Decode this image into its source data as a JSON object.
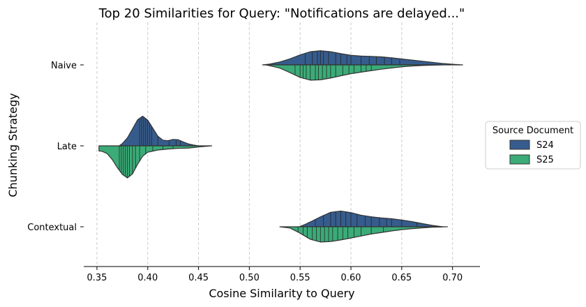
{
  "chart_data": {
    "type": "violin",
    "title": "Top 20 Similarities for Query: \"Notifications are delayed...\"",
    "xlabel": "Cosine Similarity to Query",
    "ylabel": "Chunking Strategy",
    "xlim": [
      0.337,
      0.727
    ],
    "xticks": [
      0.35,
      0.4,
      0.45,
      0.5,
      0.55,
      0.6,
      0.65,
      0.7
    ],
    "xtick_labels": [
      "0.35",
      "0.40",
      "0.45",
      "0.50",
      "0.55",
      "0.60",
      "0.65",
      "0.70"
    ],
    "categories": [
      "Naive",
      "Late",
      "Contextual"
    ],
    "grid": "x dashed",
    "split": true,
    "legend": {
      "title": "Source Document",
      "placement": "center-right",
      "entries": [
        "S24",
        "S25"
      ]
    },
    "series": [
      {
        "name": "S24",
        "color": "#365c8d",
        "groups": [
          {
            "category": "Naive",
            "x": [
              0.513,
              0.52,
              0.53,
              0.54,
              0.55,
              0.56,
              0.57,
              0.58,
              0.59,
              0.6,
              0.61,
              0.62,
              0.63,
              0.64,
              0.65,
              0.66,
              0.67,
              0.68,
              0.69,
              0.7,
              0.71
            ],
            "density": [
              0,
              0.05,
              0.18,
              0.38,
              0.62,
              0.82,
              0.88,
              0.82,
              0.7,
              0.6,
              0.55,
              0.53,
              0.5,
              0.44,
              0.37,
              0.3,
              0.23,
              0.16,
              0.09,
              0.04,
              0
            ],
            "points": [
              0.555,
              0.562,
              0.567,
              0.57,
              0.573,
              0.578,
              0.585,
              0.59,
              0.596,
              0.6,
              0.61,
              0.618,
              0.625,
              0.633,
              0.64,
              0.648
            ]
          },
          {
            "category": "Late",
            "x": [
              0.372,
              0.375,
              0.38,
              0.385,
              0.39,
              0.395,
              0.4,
              0.405,
              0.41,
              0.415,
              0.42,
              0.425,
              0.43,
              0.435,
              0.44,
              0.445,
              0.45
            ],
            "density": [
              0,
              0.14,
              0.5,
              1.05,
              1.62,
              1.85,
              1.6,
              1.1,
              0.6,
              0.35,
              0.32,
              0.4,
              0.38,
              0.24,
              0.12,
              0.05,
              0
            ],
            "points": [
              0.392,
              0.394,
              0.396,
              0.398,
              0.4,
              0.402,
              0.404,
              0.41,
              0.421,
              0.428,
              0.432
            ]
          },
          {
            "category": "Contextual",
            "x": [
              0.549,
              0.555,
              0.56,
              0.57,
              0.58,
              0.59,
              0.6,
              0.61,
              0.62,
              0.63,
              0.64,
              0.65,
              0.66,
              0.67,
              0.68,
              0.69
            ],
            "density": [
              0,
              0.15,
              0.3,
              0.62,
              0.9,
              0.98,
              0.88,
              0.72,
              0.62,
              0.55,
              0.5,
              0.42,
              0.32,
              0.2,
              0.09,
              0
            ],
            "points": [
              0.565,
              0.573,
              0.58,
              0.585,
              0.59,
              0.595,
              0.6,
              0.606,
              0.614,
              0.62,
              0.628,
              0.635,
              0.64,
              0.65,
              0.665
            ]
          }
        ]
      },
      {
        "name": "S25",
        "color": "#3bab77",
        "groups": [
          {
            "category": "Naive",
            "x": [
              0.516,
              0.52,
              0.53,
              0.54,
              0.55,
              0.56,
              0.57,
              0.58,
              0.59,
              0.6,
              0.61,
              0.62,
              0.63,
              0.64,
              0.65,
              0.66,
              0.67,
              0.68,
              0.69
            ],
            "density": [
              0,
              0.05,
              0.2,
              0.48,
              0.78,
              0.95,
              0.93,
              0.82,
              0.68,
              0.55,
              0.45,
              0.36,
              0.27,
              0.19,
              0.12,
              0.07,
              0.04,
              0.02,
              0
            ],
            "points": [
              0.545,
              0.55,
              0.553,
              0.556,
              0.56,
              0.565,
              0.568,
              0.572,
              0.576,
              0.58,
              0.585,
              0.592,
              0.598,
              0.603,
              0.61,
              0.615,
              0.62
            ]
          },
          {
            "category": "Late",
            "x": [
              0.352,
              0.355,
              0.36,
              0.365,
              0.37,
              0.375,
              0.38,
              0.385,
              0.39,
              0.395,
              0.4,
              0.41,
              0.42,
              0.43,
              0.44,
              0.45,
              0.463
            ],
            "density": [
              0.32,
              0.34,
              0.48,
              0.85,
              1.35,
              1.78,
              2.0,
              1.75,
              1.15,
              0.65,
              0.4,
              0.26,
              0.2,
              0.16,
              0.14,
              0.07,
              0
            ],
            "points": [
              0.372,
              0.374,
              0.376,
              0.378,
              0.38,
              0.382,
              0.385,
              0.388,
              0.392,
              0.398,
              0.405,
              0.415,
              0.425
            ]
          },
          {
            "category": "Contextual",
            "x": [
              0.53,
              0.54,
              0.55,
              0.56,
              0.57,
              0.58,
              0.59,
              0.6,
              0.61,
              0.62,
              0.63,
              0.64,
              0.65,
              0.66,
              0.67,
              0.68,
              0.69,
              0.695
            ],
            "density": [
              0,
              0.08,
              0.4,
              0.78,
              0.95,
              0.92,
              0.82,
              0.7,
              0.58,
              0.45,
              0.36,
              0.26,
              0.18,
              0.12,
              0.07,
              0.03,
              0.01,
              0
            ],
            "points": [
              0.548,
              0.553,
              0.557,
              0.562,
              0.566,
              0.57,
              0.574,
              0.578,
              0.582,
              0.587,
              0.592,
              0.597,
              0.603,
              0.61,
              0.62,
              0.632
            ]
          }
        ]
      }
    ]
  }
}
